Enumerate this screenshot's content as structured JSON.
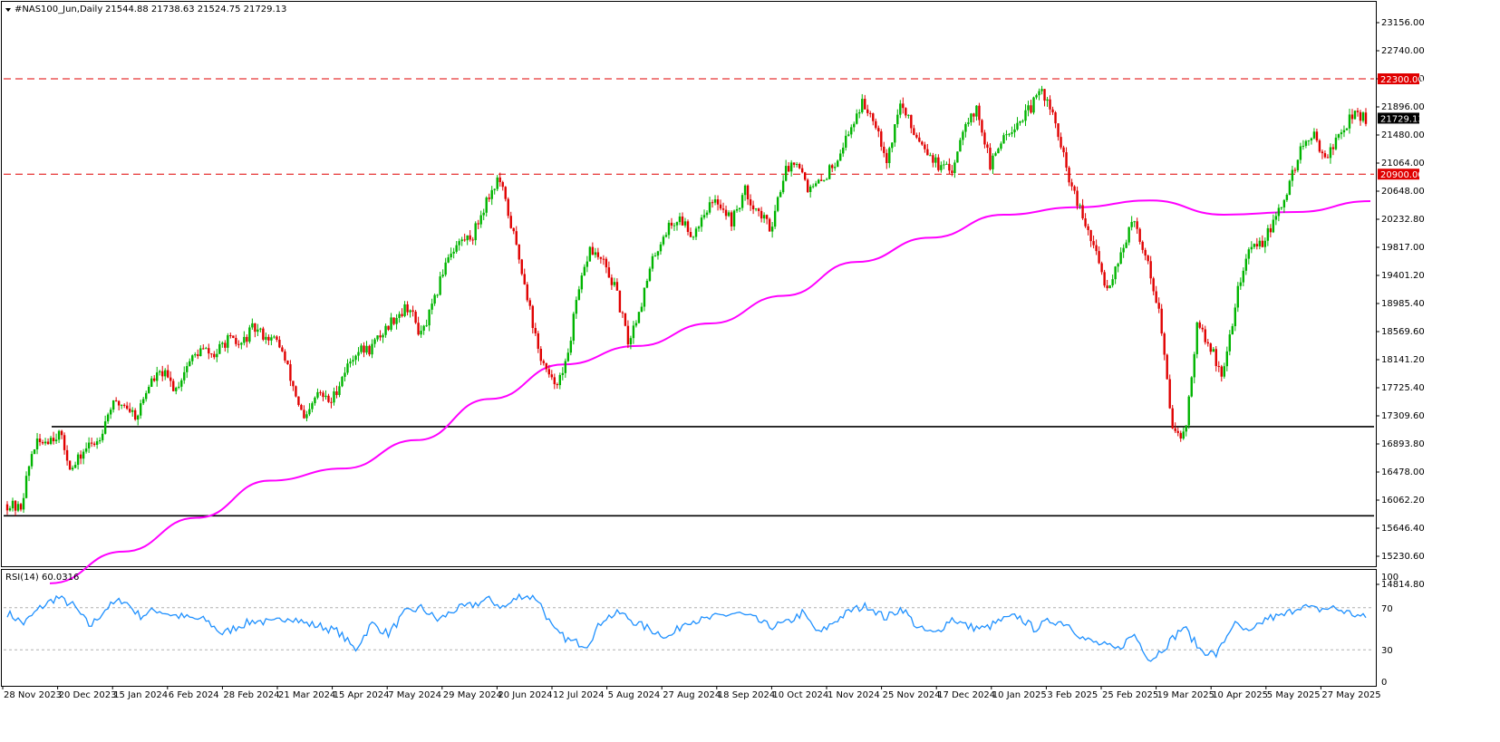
{
  "header": {
    "symbol": "#NAS100_Jun,Daily",
    "ohlc": "21544.88 21738.63 21524.75 21729.13"
  },
  "rsi": {
    "label": "RSI(14) 60.0316",
    "levels": [
      30,
      70
    ],
    "axis_labels": [
      "100",
      "70",
      "30",
      "0"
    ],
    "color": "#1e90ff"
  },
  "colors": {
    "bull": "#00b400",
    "bear": "#e00000",
    "ma": "#ff00ff",
    "resistance": "#e00000",
    "support": "#000000",
    "price_tag": "#000000"
  },
  "price_tags": {
    "last": "21729.13",
    "upper_level": "22300.00",
    "lower_level": "20900.00"
  },
  "chart_data": [
    {
      "type": "candlestick",
      "title": "#NAS100_Jun,Daily",
      "ylim": [
        14814.8,
        23400
      ],
      "y_ticks": [
        "23156.00",
        "22740.00",
        "22300.00",
        "21896.00",
        "21480.00",
        "21064.00",
        "20648.00",
        "20232.80",
        "19817.00",
        "19401.20",
        "18985.40",
        "18569.60",
        "18141.20",
        "17725.40",
        "17309.60",
        "16893.80",
        "16478.00",
        "16062.20",
        "15646.40",
        "15230.60",
        "14814.80"
      ],
      "x_ticks": [
        "28 Nov 2023",
        "20 Dec 2023",
        "15 Jan 2024",
        "6 Feb 2024",
        "28 Feb 2024",
        "21 Mar 2024",
        "15 Apr 2024",
        "7 May 2024",
        "29 May 2024",
        "20 Jun 2024",
        "12 Jul 2024",
        "5 Aug 2024",
        "27 Aug 2024",
        "18 Sep 2024",
        "10 Oct 2024",
        "1 Nov 2024",
        "25 Nov 2024",
        "17 Dec 2024",
        "10 Jan 2025",
        "3 Feb 2025",
        "25 Feb 2025",
        "19 Mar 2025",
        "10 Apr 2025",
        "5 May 2025",
        "27 May 2025"
      ],
      "close_path": [
        16000,
        15920,
        16850,
        16960,
        17050,
        16500,
        16820,
        16950,
        17450,
        17500,
        17300,
        17800,
        17950,
        17700,
        18100,
        18300,
        18200,
        18450,
        18350,
        18620,
        18500,
        18400,
        17800,
        17200,
        17650,
        17500,
        17950,
        18280,
        18300,
        18550,
        18800,
        18950,
        18500,
        19000,
        19700,
        19900,
        20000,
        20500,
        20850,
        20100,
        19300,
        18300,
        17800,
        17900,
        19000,
        19800,
        19600,
        19200,
        18400,
        19000,
        19700,
        20100,
        20250,
        20000,
        20400,
        20500,
        20200,
        20650,
        20350,
        20100,
        20900,
        21150,
        20650,
        20800,
        21100,
        21500,
        21950,
        21750,
        21100,
        21950,
        21550,
        21300,
        21000,
        20950,
        21700,
        21850,
        21000,
        21500,
        21650,
        21850,
        22150,
        21650,
        20850,
        20300,
        19800,
        19200,
        19700,
        20200,
        19700,
        18900,
        17200,
        17000,
        18700,
        18300,
        17900,
        19100,
        19800,
        19900,
        20200,
        20700,
        21300,
        21450,
        21150,
        21500,
        21800,
        21729.13
      ],
      "series": [
        {
          "name": "",
          "type": "line",
          "color": "#ff00ff",
          "values": [
            14830,
            15300,
            15800,
            16350,
            16530,
            16950,
            17560,
            18070,
            18350,
            18690,
            19100,
            19600,
            19960,
            20300,
            20410,
            20510,
            20300,
            20340,
            20500
          ]
        },
        {
          "name": "",
          "type": "hline",
          "value": 22300,
          "style": "dashed",
          "color": "#e00000"
        },
        {
          "name": "",
          "type": "hline",
          "value": 20900,
          "style": "dashed",
          "color": "#e00000"
        },
        {
          "name": "",
          "type": "hline",
          "value": 17150,
          "style": "solid",
          "color": "#000000"
        },
        {
          "name": "",
          "type": "hline",
          "value": 15830,
          "style": "solid",
          "color": "#000000"
        }
      ],
      "grid": false
    },
    {
      "type": "line",
      "title": "RSI(14) 60.0316",
      "ylim": [
        0,
        100
      ],
      "levels": [
        30,
        70
      ],
      "values": [
        65,
        55,
        70,
        80,
        72,
        52,
        70,
        78,
        62,
        68,
        63,
        60,
        58,
        45,
        53,
        58,
        55,
        62,
        55,
        52,
        47,
        30,
        55,
        45,
        65,
        70,
        58,
        68,
        72,
        78,
        70,
        82,
        79,
        48,
        38,
        35,
        60,
        65,
        55,
        48,
        42,
        58,
        58,
        62,
        65,
        60,
        52,
        55,
        65,
        45,
        58,
        68,
        72,
        60,
        70,
        50,
        45,
        60,
        52,
        50,
        58,
        62,
        50,
        58,
        55,
        40,
        35,
        30,
        45,
        20,
        35,
        52,
        30,
        25,
        55,
        45,
        60,
        62,
        72,
        68,
        70,
        65,
        60
      ]
    }
  ]
}
